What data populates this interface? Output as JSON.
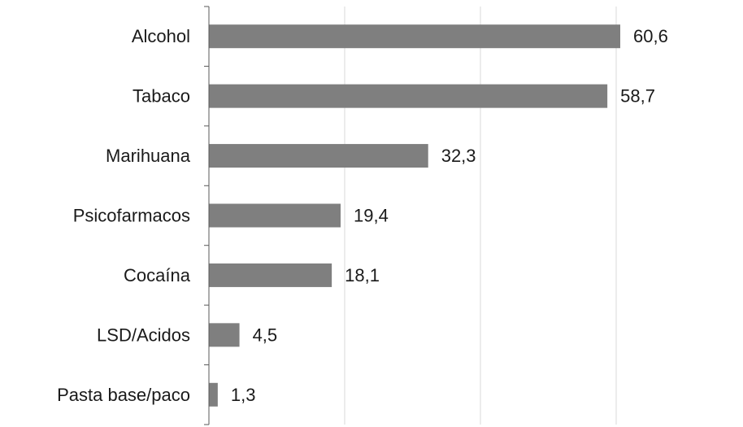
{
  "chart_data": {
    "type": "bar",
    "orientation": "horizontal",
    "categories": [
      "Alcohol",
      "Tabaco",
      "Marihuana",
      "Psicofarmacos",
      "Cocaína",
      "LSD/Acidos",
      "Pasta base/paco"
    ],
    "values": [
      60.6,
      58.7,
      32.3,
      19.4,
      18.1,
      4.5,
      1.3
    ],
    "value_labels": [
      "60,6",
      "58,7",
      "32,3",
      "19,4",
      "18,1",
      "4,5",
      "1,3"
    ],
    "title": "",
    "xlabel": "",
    "ylabel": "",
    "xlim": [
      0,
      80
    ],
    "grid": true,
    "legend": "none",
    "bar_color": "#7f7f7f"
  }
}
